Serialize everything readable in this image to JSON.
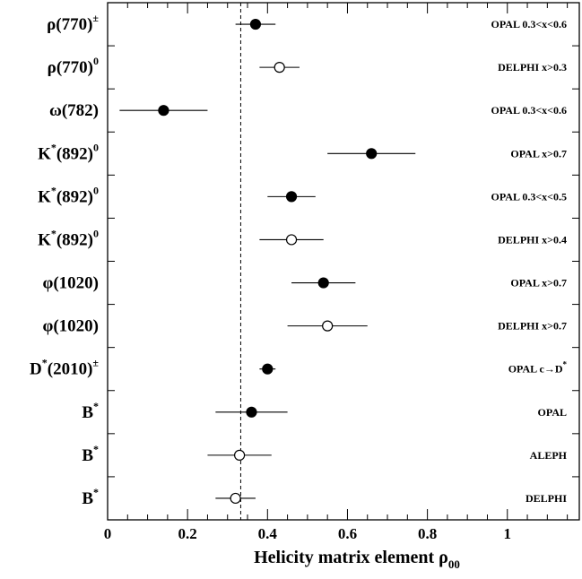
{
  "chart_data": {
    "type": "scatter",
    "title": "",
    "xlabel": "Helicity matrix element ρ",
    "xlabel_subscript": "00",
    "xlim": [
      0,
      1.18
    ],
    "x_ticks": [
      "0",
      "0.2",
      "0.4",
      "0.6",
      "0.8",
      "1"
    ],
    "x_tick_values": [
      0,
      0.2,
      0.4,
      0.6,
      0.8,
      1.0
    ],
    "reference_line": 0.333,
    "grid": false,
    "legend": "none",
    "points": [
      {
        "particle": "ρ(770)",
        "particle_sup": "±",
        "experiment": "OPAL 0.3<x<0.6",
        "value": 0.37,
        "err_low": 0.32,
        "err_high": 0.42,
        "marker": "filled"
      },
      {
        "particle": "ρ(770)",
        "particle_sup": "0",
        "experiment": "DELPHI x>0.3",
        "value": 0.43,
        "err_low": 0.38,
        "err_high": 0.48,
        "marker": "open"
      },
      {
        "particle": "ω(782)",
        "particle_sup": "",
        "experiment": "OPAL 0.3<x<0.6",
        "value": 0.14,
        "err_low": 0.03,
        "err_high": 0.25,
        "marker": "filled"
      },
      {
        "particle": "K",
        "particle_sup_mid": "*",
        "particle_after": "(892)",
        "particle_sup": "0",
        "experiment": "OPAL x>0.7",
        "value": 0.66,
        "err_low": 0.55,
        "err_high": 0.77,
        "marker": "filled"
      },
      {
        "particle": "K",
        "particle_sup_mid": "*",
        "particle_after": "(892)",
        "particle_sup": "0",
        "experiment": "OPAL 0.3<x<0.5",
        "value": 0.46,
        "err_low": 0.4,
        "err_high": 0.52,
        "marker": "filled"
      },
      {
        "particle": "K",
        "particle_sup_mid": "*",
        "particle_after": "(892)",
        "particle_sup": "0",
        "experiment": "DELPHI x>0.4",
        "value": 0.46,
        "err_low": 0.38,
        "err_high": 0.54,
        "marker": "open"
      },
      {
        "particle": "φ(1020)",
        "particle_sup": "",
        "experiment": "OPAL x>0.7",
        "value": 0.54,
        "err_low": 0.46,
        "err_high": 0.62,
        "marker": "filled"
      },
      {
        "particle": "φ(1020)",
        "particle_sup": "",
        "experiment": "DELPHI x>0.7",
        "value": 0.55,
        "err_low": 0.45,
        "err_high": 0.65,
        "marker": "open"
      },
      {
        "particle": "D",
        "particle_sup_mid": "*",
        "particle_after": "(2010)",
        "particle_sup": "±",
        "experiment": "OPAL c→D",
        "experiment_sup": "*",
        "value": 0.4,
        "err_low": 0.38,
        "err_high": 0.42,
        "marker": "filled"
      },
      {
        "particle": "B",
        "particle_sup": "*",
        "experiment": "OPAL",
        "value": 0.36,
        "err_low": 0.27,
        "err_high": 0.45,
        "marker": "filled"
      },
      {
        "particle": "B",
        "particle_sup": "*",
        "experiment": "ALEPH",
        "value": 0.33,
        "err_low": 0.25,
        "err_high": 0.41,
        "marker": "open"
      },
      {
        "particle": "B",
        "particle_sup": "*",
        "experiment": "DELPHI",
        "value": 0.32,
        "err_low": 0.27,
        "err_high": 0.37,
        "marker": "open"
      }
    ]
  }
}
